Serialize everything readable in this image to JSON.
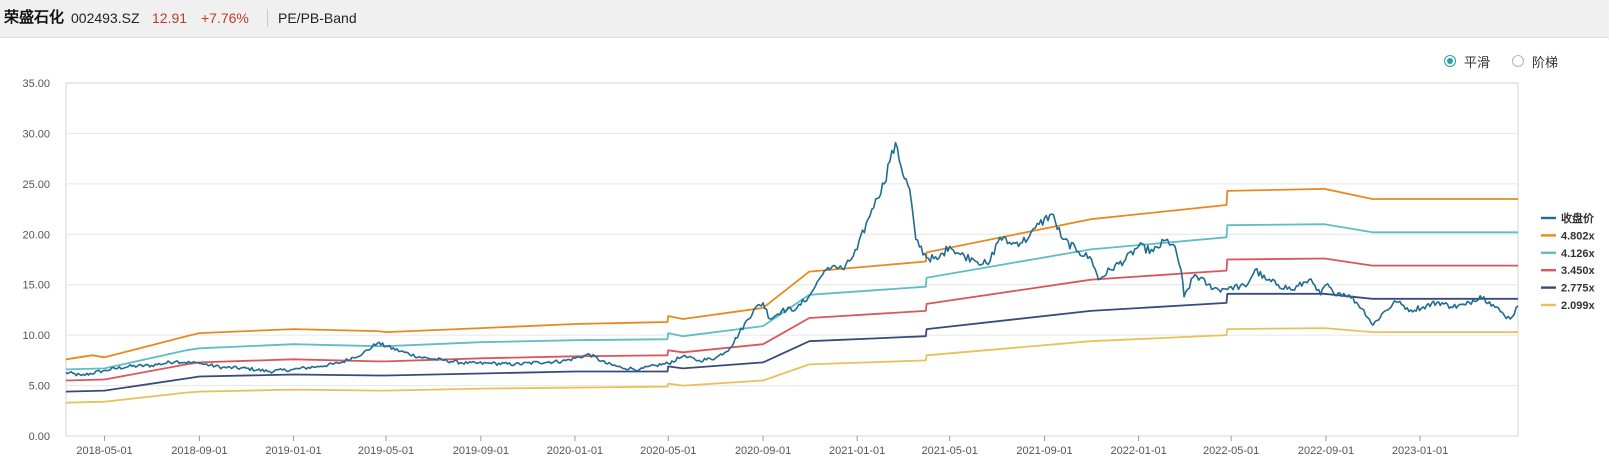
{
  "header": {
    "stock_name": "荣盛石化",
    "stock_code": "002493.SZ",
    "price": "12.91",
    "change": "+7.76%",
    "mode": "PE/PB-Band"
  },
  "toggle": {
    "smooth_label": "平滑",
    "step_label": "阶梯",
    "selected": "smooth"
  },
  "chart_data": {
    "type": "line",
    "ylim": [
      0,
      35
    ],
    "yticks": [
      "0.00",
      "5.00",
      "10.00",
      "15.00",
      "20.00",
      "25.00",
      "30.00",
      "35.00"
    ],
    "xrange": [
      "2018-03-12",
      "2023-05-08"
    ],
    "xticks": [
      "2018-05-01",
      "2018-09-01",
      "2019-01-01",
      "2019-05-01",
      "2019-09-01",
      "2020-01-01",
      "2020-05-01",
      "2020-09-01",
      "2021-01-01",
      "2021-05-01",
      "2021-09-01",
      "2022-01-01",
      "2022-05-01",
      "2022-09-01",
      "2023-01-01"
    ],
    "grid": "horizontal",
    "legend_position": "right",
    "series": [
      {
        "name": "收盘价",
        "color": "#1f6c91",
        "points": [
          [
            "2018-03-12",
            6.3
          ],
          [
            "2018-04-01",
            6.0
          ],
          [
            "2018-05-01",
            6.5
          ],
          [
            "2018-06-01",
            6.9
          ],
          [
            "2018-07-01",
            7.0
          ],
          [
            "2018-08-01",
            7.4
          ],
          [
            "2018-09-01",
            7.2
          ],
          [
            "2018-10-01",
            6.8
          ],
          [
            "2018-11-01",
            6.7
          ],
          [
            "2018-12-01",
            6.4
          ],
          [
            "2019-01-01",
            6.6
          ],
          [
            "2019-02-01",
            6.9
          ],
          [
            "2019-03-01",
            7.2
          ],
          [
            "2019-04-01",
            8.2
          ],
          [
            "2019-04-20",
            9.2
          ],
          [
            "2019-05-01",
            8.9
          ],
          [
            "2019-05-20",
            8.4
          ],
          [
            "2019-06-15",
            7.8
          ],
          [
            "2019-07-15",
            7.5
          ],
          [
            "2019-08-15",
            7.2
          ],
          [
            "2019-09-15",
            7.2
          ],
          [
            "2019-10-15",
            7.1
          ],
          [
            "2019-11-15",
            7.3
          ],
          [
            "2019-12-15",
            7.4
          ],
          [
            "2020-01-01",
            7.7
          ],
          [
            "2020-01-20",
            8.1
          ],
          [
            "2020-02-10",
            7.2
          ],
          [
            "2020-03-01",
            6.8
          ],
          [
            "2020-03-25",
            6.6
          ],
          [
            "2020-04-15",
            7.0
          ],
          [
            "2020-05-01",
            7.2
          ],
          [
            "2020-05-20",
            7.9
          ],
          [
            "2020-06-10",
            7.5
          ],
          [
            "2020-07-01",
            7.7
          ],
          [
            "2020-07-20",
            8.7
          ],
          [
            "2020-08-01",
            10.2
          ],
          [
            "2020-08-20",
            12.5
          ],
          [
            "2020-09-01",
            13.2
          ],
          [
            "2020-09-10",
            11.6
          ],
          [
            "2020-09-25",
            12.4
          ],
          [
            "2020-10-15",
            12.7
          ],
          [
            "2020-11-01",
            14.0
          ],
          [
            "2020-11-15",
            15.8
          ],
          [
            "2020-12-01",
            16.9
          ],
          [
            "2020-12-15",
            16.5
          ],
          [
            "2021-01-01",
            18.5
          ],
          [
            "2021-01-15",
            21.5
          ],
          [
            "2021-01-25",
            23.5
          ],
          [
            "2021-02-05",
            25.0
          ],
          [
            "2021-02-15",
            28.3
          ],
          [
            "2021-02-22",
            28.6
          ],
          [
            "2021-03-01",
            26.0
          ],
          [
            "2021-03-10",
            24.5
          ],
          [
            "2021-03-18",
            19.5
          ],
          [
            "2021-04-01",
            17.7
          ],
          [
            "2021-04-15",
            17.5
          ],
          [
            "2021-05-01",
            18.8
          ],
          [
            "2021-05-15",
            18.0
          ],
          [
            "2021-06-01",
            17.5
          ],
          [
            "2021-06-20",
            17.0
          ],
          [
            "2021-07-05",
            19.7
          ],
          [
            "2021-07-20",
            19.0
          ],
          [
            "2021-08-10",
            19.5
          ],
          [
            "2021-08-25",
            21.0
          ],
          [
            "2021-09-10",
            22.0
          ],
          [
            "2021-09-25",
            19.5
          ],
          [
            "2021-10-15",
            18.3
          ],
          [
            "2021-11-01",
            17.5
          ],
          [
            "2021-11-10",
            15.5
          ],
          [
            "2021-11-25",
            16.5
          ],
          [
            "2021-12-15",
            17.5
          ],
          [
            "2022-01-01",
            18.8
          ],
          [
            "2022-01-20",
            18.3
          ],
          [
            "2022-02-05",
            19.4
          ],
          [
            "2022-02-15",
            19.0
          ],
          [
            "2022-02-25",
            16.5
          ],
          [
            "2022-03-01",
            13.8
          ],
          [
            "2022-03-15",
            16.0
          ],
          [
            "2022-04-01",
            15.0
          ],
          [
            "2022-04-15",
            14.5
          ],
          [
            "2022-05-01",
            14.8
          ],
          [
            "2022-05-20",
            14.8
          ],
          [
            "2022-06-01",
            16.5
          ],
          [
            "2022-06-15",
            15.5
          ],
          [
            "2022-07-01",
            15.0
          ],
          [
            "2022-07-20",
            14.5
          ],
          [
            "2022-08-10",
            15.5
          ],
          [
            "2022-08-25",
            14.0
          ],
          [
            "2022-09-01",
            15.0
          ],
          [
            "2022-09-10",
            14.3
          ],
          [
            "2022-10-01",
            14.0
          ],
          [
            "2022-10-20",
            12.5
          ],
          [
            "2022-11-01",
            11.0
          ],
          [
            "2022-11-15",
            12.3
          ],
          [
            "2022-12-01",
            13.3
          ],
          [
            "2022-12-20",
            12.5
          ],
          [
            "2023-01-05",
            12.8
          ],
          [
            "2023-01-25",
            13.3
          ],
          [
            "2023-02-10",
            12.8
          ],
          [
            "2023-03-01",
            13.0
          ],
          [
            "2023-03-20",
            13.9
          ],
          [
            "2023-04-01",
            13.3
          ],
          [
            "2023-04-20",
            12.0
          ],
          [
            "2023-04-28",
            11.6
          ],
          [
            "2023-05-08",
            12.9
          ]
        ]
      },
      {
        "name": "4.802x",
        "color": "#e8891e",
        "points": [
          [
            "2018-03-12",
            7.6
          ],
          [
            "2018-04-15",
            8.0
          ],
          [
            "2018-05-01",
            7.8
          ],
          [
            "2018-08-15",
            9.9
          ],
          [
            "2018-09-01",
            10.2
          ],
          [
            "2019-01-01",
            10.6
          ],
          [
            "2019-04-20",
            10.4
          ],
          [
            "2019-05-01",
            10.3
          ],
          [
            "2019-09-01",
            10.7
          ],
          [
            "2020-01-01",
            11.1
          ],
          [
            "2020-04-30",
            11.3
          ],
          [
            "2020-05-01",
            11.9
          ],
          [
            "2020-05-20",
            11.6
          ],
          [
            "2020-09-01",
            12.7
          ],
          [
            "2020-10-31",
            16.3
          ],
          [
            "2021-03-31",
            17.3
          ],
          [
            "2021-04-01",
            18.2
          ],
          [
            "2021-10-31",
            21.5
          ],
          [
            "2022-04-25",
            22.9
          ],
          [
            "2022-04-26",
            24.3
          ],
          [
            "2022-08-30",
            24.5
          ],
          [
            "2022-10-31",
            23.5
          ],
          [
            "2023-05-08",
            23.5
          ]
        ]
      },
      {
        "name": "4.126x",
        "color": "#5ebdc5",
        "points": [
          [
            "2018-03-12",
            6.6
          ],
          [
            "2018-05-01",
            6.7
          ],
          [
            "2018-08-15",
            8.5
          ],
          [
            "2018-09-01",
            8.7
          ],
          [
            "2019-01-01",
            9.1
          ],
          [
            "2019-04-20",
            8.9
          ],
          [
            "2019-05-01",
            8.9
          ],
          [
            "2019-09-01",
            9.3
          ],
          [
            "2020-01-01",
            9.5
          ],
          [
            "2020-04-30",
            9.6
          ],
          [
            "2020-05-01",
            10.2
          ],
          [
            "2020-05-20",
            9.9
          ],
          [
            "2020-09-01",
            10.9
          ],
          [
            "2020-10-31",
            14.0
          ],
          [
            "2021-03-31",
            14.8
          ],
          [
            "2021-04-01",
            15.7
          ],
          [
            "2021-10-31",
            18.5
          ],
          [
            "2022-04-25",
            19.7
          ],
          [
            "2022-04-26",
            20.9
          ],
          [
            "2022-08-30",
            21.0
          ],
          [
            "2022-10-31",
            20.2
          ],
          [
            "2023-05-08",
            20.2
          ]
        ]
      },
      {
        "name": "3.450x",
        "color": "#d9575c",
        "points": [
          [
            "2018-03-12",
            5.5
          ],
          [
            "2018-05-01",
            5.6
          ],
          [
            "2018-08-15",
            7.1
          ],
          [
            "2018-09-01",
            7.3
          ],
          [
            "2019-01-01",
            7.6
          ],
          [
            "2019-04-20",
            7.4
          ],
          [
            "2019-05-01",
            7.4
          ],
          [
            "2019-09-01",
            7.7
          ],
          [
            "2020-01-01",
            7.9
          ],
          [
            "2020-04-30",
            8.0
          ],
          [
            "2020-05-01",
            8.5
          ],
          [
            "2020-05-20",
            8.3
          ],
          [
            "2020-09-01",
            9.1
          ],
          [
            "2020-10-31",
            11.7
          ],
          [
            "2021-03-31",
            12.4
          ],
          [
            "2021-04-01",
            13.1
          ],
          [
            "2021-10-31",
            15.5
          ],
          [
            "2022-04-25",
            16.4
          ],
          [
            "2022-04-26",
            17.5
          ],
          [
            "2022-08-30",
            17.6
          ],
          [
            "2022-10-31",
            16.9
          ],
          [
            "2023-05-08",
            16.9
          ]
        ]
      },
      {
        "name": "2.775x",
        "color": "#3b4a7c",
        "points": [
          [
            "2018-03-12",
            4.4
          ],
          [
            "2018-05-01",
            4.5
          ],
          [
            "2018-08-15",
            5.7
          ],
          [
            "2018-09-01",
            5.9
          ],
          [
            "2019-01-01",
            6.1
          ],
          [
            "2019-04-20",
            6.0
          ],
          [
            "2019-05-01",
            6.0
          ],
          [
            "2019-09-01",
            6.2
          ],
          [
            "2020-01-01",
            6.4
          ],
          [
            "2020-04-30",
            6.4
          ],
          [
            "2020-05-01",
            6.9
          ],
          [
            "2020-05-20",
            6.7
          ],
          [
            "2020-09-01",
            7.3
          ],
          [
            "2020-10-31",
            9.4
          ],
          [
            "2021-03-31",
            9.9
          ],
          [
            "2021-04-01",
            10.6
          ],
          [
            "2021-10-31",
            12.4
          ],
          [
            "2022-04-25",
            13.2
          ],
          [
            "2022-04-26",
            14.1
          ],
          [
            "2022-08-30",
            14.1
          ],
          [
            "2022-10-31",
            13.6
          ],
          [
            "2023-05-08",
            13.6
          ]
        ]
      },
      {
        "name": "2.099x",
        "color": "#e9c15a",
        "points": [
          [
            "2018-03-12",
            3.3
          ],
          [
            "2018-05-01",
            3.4
          ],
          [
            "2018-08-15",
            4.3
          ],
          [
            "2018-09-01",
            4.4
          ],
          [
            "2019-01-01",
            4.6
          ],
          [
            "2019-04-20",
            4.5
          ],
          [
            "2019-05-01",
            4.5
          ],
          [
            "2019-09-01",
            4.7
          ],
          [
            "2020-01-01",
            4.8
          ],
          [
            "2020-04-30",
            4.9
          ],
          [
            "2020-05-01",
            5.2
          ],
          [
            "2020-05-20",
            5.0
          ],
          [
            "2020-09-01",
            5.5
          ],
          [
            "2020-10-31",
            7.1
          ],
          [
            "2021-03-31",
            7.5
          ],
          [
            "2021-04-01",
            8.0
          ],
          [
            "2021-10-31",
            9.4
          ],
          [
            "2022-04-25",
            10.0
          ],
          [
            "2022-04-26",
            10.6
          ],
          [
            "2022-08-30",
            10.7
          ],
          [
            "2022-10-31",
            10.3
          ],
          [
            "2023-05-08",
            10.3
          ]
        ]
      }
    ]
  }
}
